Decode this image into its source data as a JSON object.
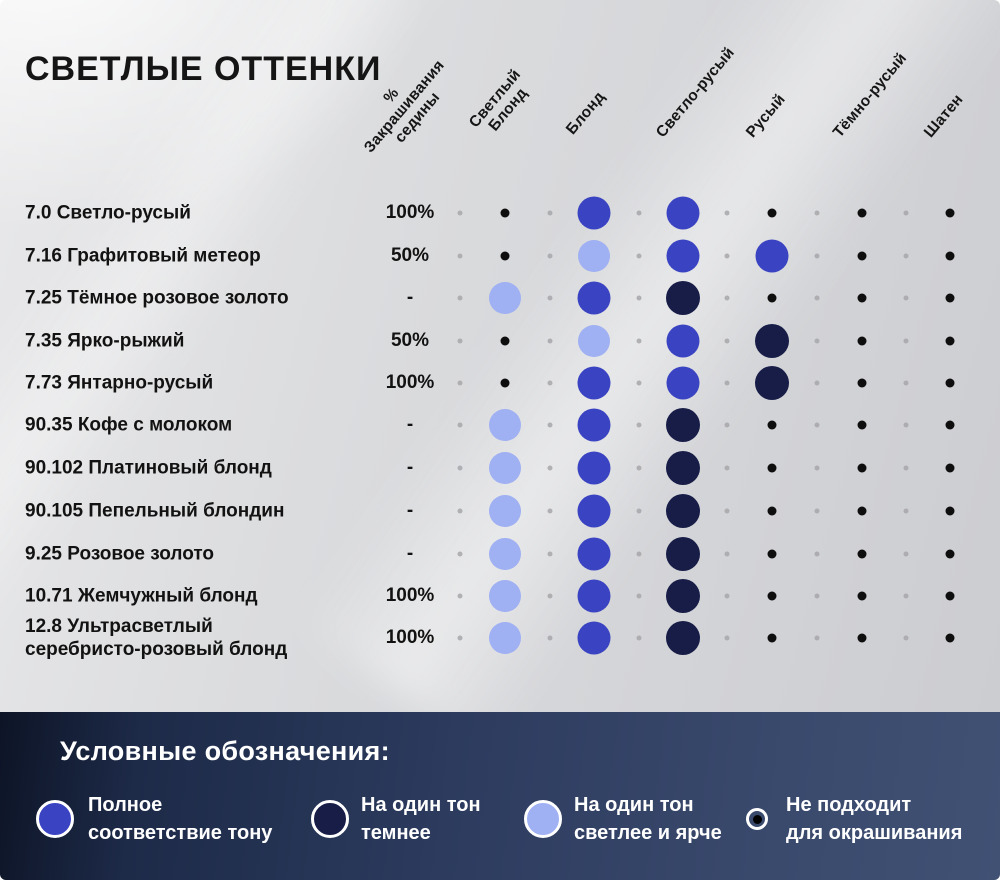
{
  "chart_data": {
    "type": "table",
    "title": "СВЕТЛЫЕ ОТТЕНКИ",
    "columns": [
      {
        "label": "% Закрашивания седины",
        "lines": "%\nЗакрашивания\nседины"
      },
      {
        "label": "Светлый Блонд",
        "lines": "Светлый\nБлонд"
      },
      {
        "label": "Блонд",
        "lines": "Блонд"
      },
      {
        "label": "Светло-русый",
        "lines": "Светло-русый"
      },
      {
        "label": "Русый",
        "lines": "Русый"
      },
      {
        "label": "Тёмно-русый",
        "lines": "Тёмно-русый"
      },
      {
        "label": "Шатен",
        "lines": "Шатен"
      }
    ],
    "cell_value_meanings": {
      "match": "Полное соответствие тону",
      "darker": "На один тон темнее",
      "lighter": "На один тон светлее и ярче",
      "no": "Не подходит для окрашивания"
    },
    "rows": [
      {
        "label": "7.0 Светло-русый",
        "percent": "100%",
        "cells": [
          "no",
          "match",
          "match",
          "no",
          "no",
          "no"
        ]
      },
      {
        "label": "7.16 Графитовый метеор",
        "percent": "50%",
        "cells": [
          "no",
          "lighter",
          "match",
          "match",
          "no",
          "no"
        ]
      },
      {
        "label": "7.25 Тёмное розовое золото",
        "percent": "-",
        "cells": [
          "lighter",
          "match",
          "darker",
          "no",
          "no",
          "no"
        ]
      },
      {
        "label": "7.35  Ярко-рыжий",
        "percent": "50%",
        "cells": [
          "no",
          "lighter",
          "match",
          "darker",
          "no",
          "no"
        ]
      },
      {
        "label": "7.73 Янтарно-русый",
        "percent": "100%",
        "cells": [
          "no",
          "match",
          "match",
          "darker",
          "no",
          "no"
        ]
      },
      {
        "label": "90.35 Кофе с молоком",
        "percent": "-",
        "cells": [
          "lighter",
          "match",
          "darker",
          "no",
          "no",
          "no"
        ]
      },
      {
        "label": "90.102 Платиновый блонд",
        "percent": "-",
        "cells": [
          "lighter",
          "match",
          "darker",
          "no",
          "no",
          "no"
        ]
      },
      {
        "label": "90.105 Пепельный блондин",
        "percent": "-",
        "cells": [
          "lighter",
          "match",
          "darker",
          "no",
          "no",
          "no"
        ]
      },
      {
        "label": "9.25 Розовое золото",
        "percent": "-",
        "cells": [
          "lighter",
          "match",
          "darker",
          "no",
          "no",
          "no"
        ]
      },
      {
        "label": "10.71 Жемчужный блонд",
        "percent": "100%",
        "cells": [
          "lighter",
          "match",
          "darker",
          "no",
          "no",
          "no"
        ]
      },
      {
        "label": "12.8 Ультрасветлый\nсеребристо-розовый блонд",
        "percent": "100%",
        "cells": [
          "lighter",
          "match",
          "darker",
          "no",
          "no",
          "no"
        ]
      }
    ],
    "legend": {
      "heading": "Условные обозначения:",
      "items": [
        {
          "type": "match",
          "label": "Полное\nсоответствие тону"
        },
        {
          "type": "darker",
          "label": "На один тон\nтемнее"
        },
        {
          "type": "lighter",
          "label": "На один тон\nсветлее и ярче"
        },
        {
          "type": "no",
          "label": "Не подходит\nдля окрашивания"
        }
      ]
    }
  },
  "colors": {
    "background": "#d9dadc",
    "title_text": "#151515",
    "match": "#3a43c1",
    "darker": "#171d47",
    "lighter": "#9fb0f3",
    "not_suitable": "#0e0e0e",
    "separator_dot": "#a7a7aa",
    "legend_band_left": "#0d1426",
    "legend_band_right": "#415174",
    "legend_text": "#ffffff"
  }
}
